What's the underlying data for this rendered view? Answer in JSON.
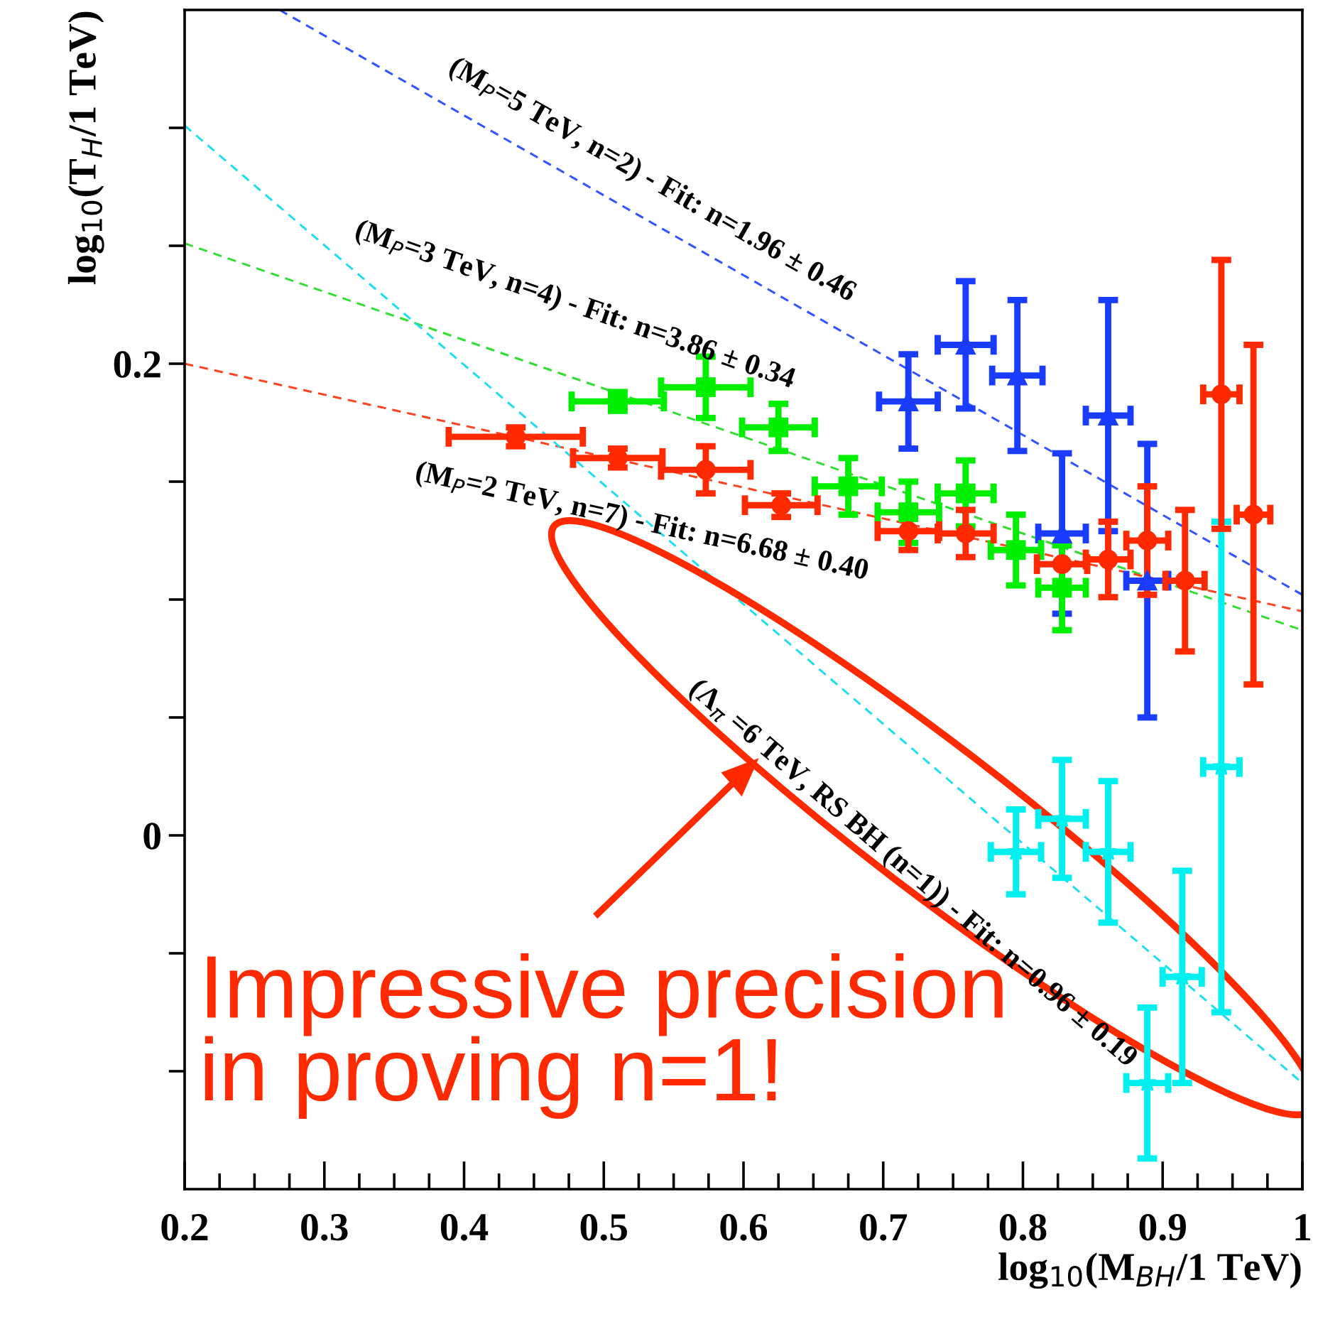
{
  "chart_data": {
    "type": "scatter",
    "xlabel": "log$_{10}$(M$_{BH}$/1 TeV)",
    "ylabel": "log$_{10}$(T$_{H}$/1 TeV)",
    "xlim": [
      0.2,
      1.0
    ],
    "ylim": [
      -0.15,
      0.35
    ],
    "xticks": [
      0.2,
      0.3,
      0.4,
      0.5,
      0.6,
      0.7,
      0.8,
      0.9,
      1
    ],
    "yticks": [
      {
        "value": -0.1,
        "label": null
      },
      {
        "value": -0.05,
        "label": null
      },
      0,
      {
        "value": 0.05,
        "label": null
      },
      {
        "value": 0.1,
        "label": null
      },
      {
        "value": 0.15,
        "label": null
      },
      0.2,
      {
        "value": 0.25,
        "label": null
      },
      {
        "value": 0.3,
        "label": null
      }
    ],
    "grid": false,
    "legend": false,
    "series": [
      {
        "type": "line",
        "color": "#3355ff",
        "line_style": "dashed",
        "marker": "none",
        "x": [
          0.268,
          1.0
        ],
        "values": [
          0.35,
          0.102
        ]
      },
      {
        "type": "line",
        "color": "#33dd33",
        "line_style": "dashed",
        "marker": "none",
        "x": [
          0.2,
          1.0
        ],
        "values": [
          0.251,
          0.087
        ]
      },
      {
        "type": "line",
        "color": "#ff4422",
        "line_style": "dashed",
        "marker": "none",
        "x": [
          0.2,
          1.0
        ],
        "values": [
          0.2,
          0.095
        ]
      },
      {
        "type": "line",
        "color": "#22ddee",
        "line_style": "dashed",
        "marker": "none",
        "x": [
          0.2,
          1.0
        ],
        "values": [
          0.301,
          -0.105
        ]
      },
      {
        "color": "#ff2a00",
        "marker": "circle",
        "x": [
          0.437,
          0.51,
          0.573,
          0.627,
          0.718,
          0.759,
          0.828,
          0.861,
          0.889,
          0.916,
          0.942,
          0.965
        ],
        "values": [
          0.169,
          0.16,
          0.155,
          0.14,
          0.129,
          0.128,
          0.115,
          0.117,
          0.125,
          0.108,
          0.187,
          0.136
        ],
        "errors": [
          0.004,
          0.004,
          0.01,
          0.005,
          0.008,
          0.01,
          null,
          0.016,
          0.023,
          0.03,
          0.057,
          0.072
        ],
        "xerrors": [
          0.048,
          0.032,
          0.032,
          0.026,
          0.022,
          0.02,
          0.018,
          0.016,
          0.015,
          0.014,
          0.013,
          0.012
        ]
      },
      {
        "color": "#00ee00",
        "marker": "square",
        "x": [
          0.51,
          0.573,
          0.625,
          0.675,
          0.718,
          0.759,
          0.795,
          0.828
        ],
        "values": [
          0.184,
          0.19,
          0.173,
          0.148,
          0.137,
          0.145,
          0.121,
          0.105
        ],
        "errors": [
          0.004,
          0.013,
          0.01,
          0.012,
          0.013,
          0.014,
          0.015,
          0.018
        ],
        "xerrors": [
          0.033,
          0.032,
          0.026,
          0.024,
          0.022,
          0.02,
          0.018,
          0.017
        ]
      },
      {
        "color": "#1a3cff",
        "marker": "triangle",
        "x": [
          0.718,
          0.759,
          0.796,
          0.828,
          0.861,
          0.889
        ],
        "values": [
          0.184,
          0.208,
          0.195,
          0.128,
          0.178,
          0.108
        ],
        "errors": [
          0.02,
          0.027,
          0.032,
          0.034,
          0.049,
          0.058
        ],
        "xerrors": [
          0.021,
          0.02,
          0.018,
          0.017,
          0.016,
          0.015
        ]
      },
      {
        "color": "#00f0f0",
        "marker": "star",
        "x": [
          0.795,
          0.828,
          0.861,
          0.889,
          0.914,
          0.942
        ],
        "values": [
          -0.007,
          0.007,
          -0.007,
          -0.105,
          -0.06,
          0.029
        ],
        "errors": [
          0.018,
          0.025,
          0.03,
          0.032,
          0.045,
          0.104
        ],
        "xerrors": [
          0.018,
          0.017,
          0.016,
          0.015,
          0.014,
          0.013
        ]
      }
    ],
    "annotations": [
      "(M$_{P}$=5 TeV, n=2) - Fit: n=1.96 ± 0.46",
      "(M$_{P}$=3 TeV, n=4) - Fit: n=3.86 ± 0.34",
      "(M$_{P}$=2 TeV, n=7) - Fit: n=6.68 ± 0.40",
      "(Λ$_{π}$ =6 TeV, RS BH (n=1)) - Fit: n=0.96 ± 0.19",
      "Impressive precision\nin proving n=1!"
    ]
  }
}
